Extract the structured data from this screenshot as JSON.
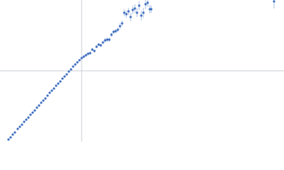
{
  "chart_data": {
    "type": "scatter",
    "x": [
      -103,
      -100,
      -97,
      -94,
      -90,
      -87,
      -84,
      -81,
      -78,
      -75,
      -72,
      -69,
      -66,
      -63,
      -60,
      -57,
      -54,
      -51,
      -48,
      -45,
      -42,
      -39,
      -36,
      -33,
      -30,
      -27,
      -24,
      -21,
      -18,
      -15,
      -12,
      -9,
      -6,
      -3,
      0,
      3,
      6,
      9,
      12,
      15,
      18,
      21,
      24,
      27,
      30,
      33,
      36,
      39,
      42,
      45,
      48,
      51,
      54,
      57,
      60,
      63,
      66,
      69,
      72,
      75,
      78,
      81,
      84,
      87,
      90,
      93,
      96,
      98,
      271
    ],
    "series": [
      {
        "color": "#3f6fbf",
        "error_color": "#a9bfe3",
        "values": [
          -97,
          -94,
          -90,
          -87,
          -82,
          -79,
          -76,
          -72,
          -69,
          -66,
          -62,
          -59,
          -56,
          -52,
          -49,
          -45,
          -42,
          -39,
          -35,
          -31,
          -28,
          -25,
          -21,
          -18,
          -15,
          -11,
          -8,
          -5,
          -1,
          2,
          6,
          9,
          12,
          15,
          18,
          20,
          22,
          24,
          25,
          30,
          28,
          34,
          37,
          36,
          40,
          43,
          44,
          44,
          51,
          55,
          56,
          58,
          63,
          67,
          82,
          80,
          84,
          76,
          86,
          88,
          82,
          92,
          78,
          82,
          94,
          96,
          87,
          87,
          98
        ],
        "errors": [
          1,
          1,
          1,
          1,
          1,
          1,
          1,
          1,
          1,
          1,
          1,
          1,
          1,
          1,
          1,
          1,
          1,
          1,
          1,
          1,
          1,
          1,
          1,
          1,
          1,
          1,
          1,
          1,
          1,
          1,
          1,
          1,
          1,
          1,
          2,
          2,
          2,
          2,
          2,
          2,
          2,
          2,
          2,
          2,
          2,
          3,
          3,
          3,
          3,
          3,
          3,
          3,
          4,
          4,
          5,
          5,
          5,
          6,
          6,
          6,
          6,
          6,
          7,
          7,
          7,
          6,
          6,
          5,
          10
        ]
      }
    ],
    "xlim": [
      -115,
      285
    ],
    "ylim": [
      -100,
      100
    ],
    "origin_lines": true
  }
}
